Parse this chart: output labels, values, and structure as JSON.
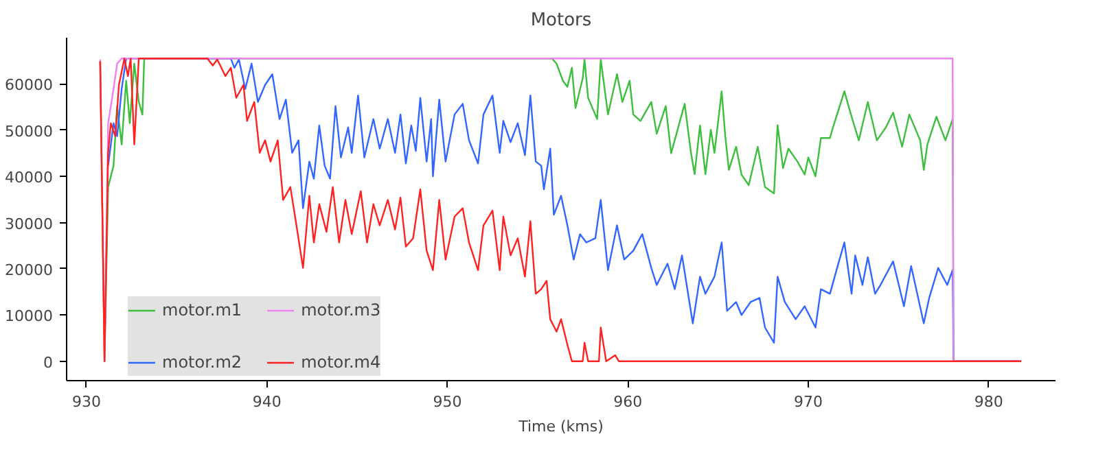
{
  "chart_data": {
    "type": "line",
    "title": "Motors",
    "xlabel": "Time (kms)",
    "xlim": [
      928.9,
      983.7
    ],
    "ylim": [
      -4200,
      70000
    ],
    "xticks": [
      930,
      940,
      950,
      960,
      970,
      980
    ],
    "yticks": [
      0,
      10000,
      20000,
      30000,
      40000,
      50000,
      60000
    ],
    "grid": false,
    "legend": "bottom left",
    "marker": "none",
    "line_style": "solid",
    "series": [
      {
        "name": "motor.m1",
        "color": "#3cbf3c",
        "x": [
          930.76,
          931.0,
          931.2,
          931.5,
          931.7,
          931.95,
          932.2,
          932.4,
          932.65,
          932.9,
          933.1,
          933.2,
          955.8,
          956.05,
          956.4,
          956.65,
          956.9,
          957.1,
          957.5,
          957.6,
          957.8,
          958.3,
          958.5,
          958.9,
          959.4,
          959.7,
          960.1,
          960.3,
          960.7,
          961.3,
          961.6,
          962.1,
          962.4,
          963.15,
          963.5,
          963.7,
          964.0,
          964.3,
          964.6,
          964.8,
          965.2,
          965.4,
          965.6,
          966.0,
          966.3,
          966.7,
          967.2,
          967.6,
          968.1,
          968.3,
          968.6,
          968.9,
          969.4,
          969.8,
          970.0,
          970.4,
          970.7,
          971.2,
          971.4,
          972.0,
          972.4,
          972.8,
          973.3,
          973.8,
          974.3,
          974.7,
          975.2,
          975.6,
          976.2,
          976.4,
          976.6,
          977.1,
          977.6,
          978.0,
          978.05,
          981.8
        ],
        "values": [
          64900,
          0,
          37700,
          42300,
          55200,
          46900,
          60700,
          51500,
          64400,
          56100,
          53400,
          65500,
          65500,
          64400,
          60700,
          59400,
          63500,
          54800,
          61200,
          65300,
          57000,
          52400,
          65300,
          53400,
          62100,
          56100,
          60700,
          53400,
          52000,
          56100,
          49200,
          55200,
          45000,
          55700,
          45100,
          40500,
          51000,
          40500,
          50100,
          45100,
          58400,
          48700,
          41400,
          46400,
          40400,
          38100,
          46400,
          37700,
          36300,
          51100,
          41800,
          46000,
          43200,
          40400,
          44100,
          40000,
          48300,
          48300,
          51000,
          58400,
          52900,
          47800,
          56100,
          47800,
          50600,
          53800,
          46400,
          53400,
          47800,
          41400,
          46900,
          52900,
          47800,
          52400,
          0,
          0
        ]
      },
      {
        "name": "motor.m2",
        "color": "#3366ff",
        "x": [
          931.2,
          931.5,
          931.7,
          931.95,
          932.2,
          938.0,
          938.2,
          938.45,
          938.8,
          939.15,
          939.5,
          939.9,
          940.3,
          940.7,
          941.05,
          941.4,
          941.75,
          942.0,
          942.35,
          942.6,
          942.9,
          943.2,
          943.5,
          943.8,
          944.1,
          944.5,
          944.7,
          945.05,
          945.4,
          945.9,
          946.25,
          946.7,
          947.1,
          947.4,
          947.7,
          948.0,
          948.25,
          948.5,
          948.85,
          949.1,
          949.2,
          949.55,
          949.9,
          950.4,
          950.85,
          951.2,
          951.7,
          952.0,
          952.5,
          952.9,
          953.1,
          953.5,
          953.9,
          954.3,
          954.6,
          954.9,
          955.2,
          955.35,
          955.7,
          955.9,
          956.3,
          956.65,
          957.0,
          957.35,
          957.7,
          958.2,
          958.5,
          958.9,
          959.4,
          959.8,
          960.3,
          960.8,
          961.3,
          961.6,
          962.2,
          962.6,
          963.0,
          963.6,
          964.0,
          964.3,
          964.8,
          965.2,
          965.5,
          966.0,
          966.3,
          966.8,
          967.3,
          967.6,
          968.1,
          968.3,
          968.7,
          969.3,
          969.8,
          970.4,
          970.7,
          971.2,
          971.7,
          972.0,
          972.4,
          972.6,
          973.0,
          973.3,
          973.7,
          974.0,
          974.7,
          975.3,
          975.7,
          976.4,
          976.7,
          977.2,
          977.7,
          978.0,
          978.05,
          981.8
        ],
        "values": [
          42300,
          51500,
          48700,
          58900,
          65500,
          65500,
          63500,
          65300,
          58900,
          64400,
          56100,
          59800,
          62100,
          52400,
          56600,
          45100,
          47800,
          33100,
          43200,
          39500,
          51000,
          42300,
          39500,
          55200,
          44100,
          50600,
          45100,
          57500,
          44100,
          52400,
          46000,
          52400,
          45100,
          53400,
          42800,
          51000,
          45500,
          57000,
          43200,
          52400,
          40000,
          56600,
          43200,
          53400,
          55700,
          47800,
          42800,
          53400,
          57500,
          45100,
          52000,
          47400,
          51500,
          44600,
          57500,
          43200,
          42300,
          37200,
          46000,
          31700,
          35800,
          29400,
          22000,
          27500,
          25700,
          26600,
          34900,
          19700,
          29400,
          22000,
          23900,
          27500,
          20200,
          16500,
          21100,
          15600,
          22900,
          8200,
          18300,
          14600,
          18300,
          25700,
          10900,
          12800,
          10000,
          12800,
          13700,
          7300,
          4000,
          18300,
          12800,
          9100,
          11900,
          7300,
          15600,
          14600,
          21600,
          25700,
          14600,
          22900,
          16500,
          22500,
          14600,
          16500,
          21600,
          11900,
          20600,
          8200,
          13700,
          20200,
          16500,
          19700,
          0,
          0
        ]
      },
      {
        "name": "motor.m3",
        "color": "#ee82ee",
        "x": [
          930.76,
          931.0,
          931.2,
          931.5,
          931.7,
          931.95,
          978.0,
          978.05,
          981.8
        ],
        "values": [
          65300,
          0,
          51500,
          58900,
          64400,
          65500,
          65500,
          0,
          0
        ]
      },
      {
        "name": "motor.m4",
        "color": "#ff2222",
        "x": [
          930.76,
          931.0,
          931.2,
          931.35,
          931.6,
          931.8,
          932.1,
          932.3,
          932.45,
          932.65,
          932.9,
          936.7,
          937.0,
          937.25,
          937.7,
          938.0,
          938.3,
          938.7,
          938.9,
          939.3,
          939.6,
          939.9,
          940.2,
          940.6,
          940.9,
          941.3,
          941.6,
          942.0,
          942.35,
          942.6,
          942.9,
          943.3,
          943.65,
          944.0,
          944.35,
          944.7,
          945.2,
          945.55,
          945.9,
          946.25,
          946.7,
          947.1,
          947.4,
          947.7,
          948.1,
          948.5,
          948.85,
          949.2,
          949.55,
          949.9,
          950.4,
          950.85,
          951.2,
          951.7,
          952.0,
          952.5,
          952.9,
          953.1,
          953.5,
          953.9,
          954.3,
          954.6,
          954.9,
          955.2,
          955.5,
          955.7,
          956.05,
          956.3,
          956.65,
          956.9,
          957.5,
          957.6,
          957.8,
          958.4,
          958.5,
          958.8,
          959.3,
          959.5,
          981.8
        ],
        "values": [
          64900,
          0,
          45100,
          51500,
          48700,
          59800,
          65500,
          61700,
          65500,
          46900,
          65500,
          65500,
          64000,
          65300,
          61700,
          63500,
          57000,
          59800,
          52000,
          56100,
          45100,
          47800,
          43200,
          47800,
          34900,
          37700,
          30300,
          20200,
          35800,
          25700,
          34000,
          28000,
          37700,
          25700,
          34900,
          27500,
          36800,
          25700,
          34000,
          29400,
          34900,
          28500,
          35400,
          24800,
          26600,
          37200,
          23900,
          19700,
          34900,
          22000,
          31300,
          33100,
          25700,
          19700,
          29400,
          32600,
          19700,
          31300,
          22900,
          26600,
          18300,
          30300,
          14600,
          15600,
          17400,
          9100,
          6400,
          9100,
          3600,
          0,
          0,
          4000,
          0,
          0,
          7300,
          0,
          1300,
          0,
          0
        ]
      }
    ]
  }
}
